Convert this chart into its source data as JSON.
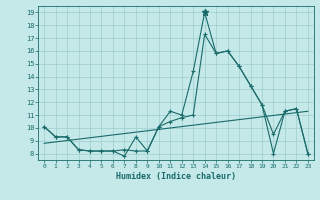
{
  "xlabel": "Humidex (Indice chaleur)",
  "background_color": "#c5e8e8",
  "grid_color": "#9ecece",
  "line_color": "#1a6b6b",
  "xlim": [
    -0.5,
    23.5
  ],
  "ylim": [
    7.5,
    19.5
  ],
  "xticks": [
    0,
    1,
    2,
    3,
    4,
    5,
    6,
    7,
    8,
    9,
    10,
    11,
    12,
    13,
    14,
    15,
    16,
    17,
    18,
    19,
    20,
    21,
    22,
    23
  ],
  "yticks": [
    8,
    9,
    10,
    11,
    12,
    13,
    14,
    15,
    16,
    17,
    18,
    19
  ],
  "series1_x": [
    0,
    1,
    2,
    3,
    4,
    5,
    6,
    7,
    8,
    9,
    10,
    11,
    12,
    13,
    14,
    15,
    16,
    17,
    18,
    19,
    20,
    21,
    22,
    23
  ],
  "series1_y": [
    10.1,
    9.3,
    9.3,
    8.3,
    8.2,
    8.2,
    8.2,
    7.8,
    9.3,
    8.2,
    10.1,
    11.3,
    11.0,
    14.4,
    19.0,
    15.8,
    16.0,
    14.8,
    13.3,
    11.8,
    9.5,
    11.3,
    11.5,
    8.0
  ],
  "series2_x": [
    0,
    1,
    2,
    3,
    4,
    5,
    6,
    7,
    8,
    9,
    10,
    11,
    12,
    13,
    14,
    15,
    16,
    17,
    18,
    19,
    20,
    21,
    22,
    23
  ],
  "series2_y": [
    10.1,
    9.3,
    9.3,
    8.3,
    8.2,
    8.2,
    8.2,
    8.3,
    8.2,
    8.2,
    10.1,
    10.5,
    10.8,
    11.0,
    17.3,
    15.8,
    16.0,
    14.8,
    13.3,
    11.8,
    8.0,
    11.3,
    11.5,
    8.0
  ],
  "trend_x": [
    0,
    23
  ],
  "trend_y": [
    8.8,
    11.3
  ],
  "peak_x": 14,
  "peak_y": 19.0
}
